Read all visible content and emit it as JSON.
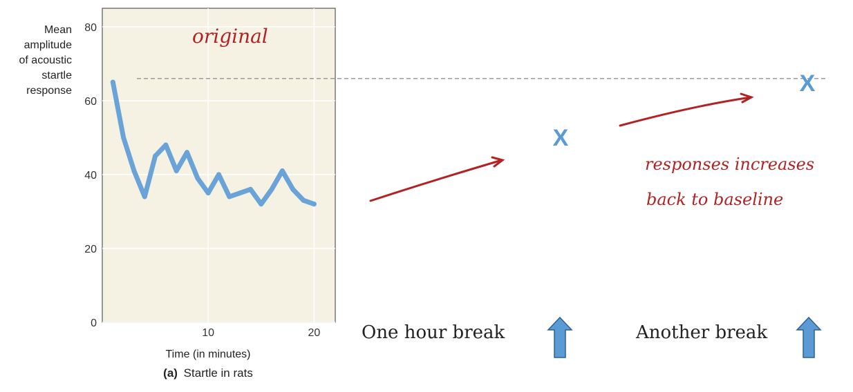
{
  "chart_data": {
    "type": "line",
    "caption_prefix": "(a)",
    "caption": "Startle in rats",
    "ylabel_lines": [
      "Mean",
      "amplitude",
      "of acoustic",
      "startle",
      "response"
    ],
    "xlabel": "Time (in minutes)",
    "xlim": [
      0,
      22
    ],
    "ylim": [
      0,
      85
    ],
    "xticks": [
      10,
      20
    ],
    "yticks": [
      0,
      20,
      40,
      60,
      80
    ],
    "series": [
      {
        "x": [
          1,
          2,
          3,
          4,
          5,
          6,
          7,
          8,
          9,
          10,
          11,
          12,
          13,
          14,
          15,
          16,
          17,
          18,
          19,
          20
        ],
        "y": [
          65,
          50,
          41,
          34,
          45,
          48,
          41,
          46,
          39,
          35,
          40,
          34,
          35,
          36,
          32,
          36,
          41,
          36,
          33,
          32
        ],
        "color": "#6aa3d8"
      }
    ],
    "plot_background": "#f5f2e4",
    "baseline_value": 66
  },
  "annotations": {
    "original_note": "original",
    "break1_label": "One hour break",
    "break2_label": "Another break",
    "mark1": "X",
    "mark2": "X",
    "note_line1": "responses increases",
    "note_line2": "back to baseline",
    "hand_color": "#b32222",
    "mark_color": "#5b9bd5",
    "arrow_fill": "#5b9bd5"
  }
}
